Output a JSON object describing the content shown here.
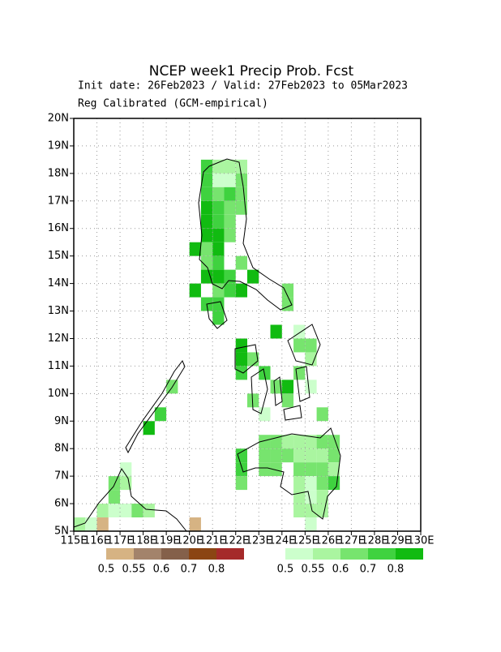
{
  "chart_data": {
    "type": "map",
    "title": "NCEP week1 Precip Prob. Fcst",
    "subtitle": "Init date: 26Feb2023 / Valid: 27Feb2023 to 05Mar2023",
    "subtitle2": "Reg Calibrated (GCM-empirical)",
    "xlim": [
      115,
      130
    ],
    "ylim": [
      5,
      20
    ],
    "grid": true,
    "xticks": [
      {
        "value": 115,
        "label": "115E"
      },
      {
        "value": 116,
        "label": "116E"
      },
      {
        "value": 117,
        "label": "117E"
      },
      {
        "value": 118,
        "label": "118E"
      },
      {
        "value": 119,
        "label": "119E"
      },
      {
        "value": 120,
        "label": "120E"
      },
      {
        "value": 121,
        "label": "121E"
      },
      {
        "value": 122,
        "label": "122E"
      },
      {
        "value": 123,
        "label": "123E"
      },
      {
        "value": 124,
        "label": "124E"
      },
      {
        "value": 125,
        "label": "125E"
      },
      {
        "value": 126,
        "label": "126E"
      },
      {
        "value": 127,
        "label": "127E"
      },
      {
        "value": 128,
        "label": "128E"
      },
      {
        "value": 129,
        "label": "129E"
      },
      {
        "value": 130,
        "label": "130E"
      }
    ],
    "yticks": [
      {
        "value": 5,
        "label": "5N"
      },
      {
        "value": 6,
        "label": "6N"
      },
      {
        "value": 7,
        "label": "7N"
      },
      {
        "value": 8,
        "label": "8N"
      },
      {
        "value": 9,
        "label": "9N"
      },
      {
        "value": 10,
        "label": "10N"
      },
      {
        "value": 11,
        "label": "11N"
      },
      {
        "value": 12,
        "label": "12N"
      },
      {
        "value": 13,
        "label": "13N"
      },
      {
        "value": 14,
        "label": "14N"
      },
      {
        "value": 15,
        "label": "15N"
      },
      {
        "value": 16,
        "label": "16N"
      },
      {
        "value": 17,
        "label": "17N"
      },
      {
        "value": 18,
        "label": "18N"
      },
      {
        "value": 19,
        "label": "19N"
      },
      {
        "value": 20,
        "label": "20N"
      }
    ],
    "cell_size": 0.5,
    "levels": [
      0.5,
      0.55,
      0.6,
      0.7,
      0.8
    ],
    "dry_colors": [
      "#d6b383",
      "#a3836b",
      "#84604a",
      "#8b4513",
      "#a52a2a"
    ],
    "wet_colors": [
      "#ccffcc",
      "#aaf5a0",
      "#77e46e",
      "#3fd23f",
      "#11bb11"
    ],
    "dry_cells": [
      [
        116,
        5,
        0.5
      ],
      [
        120,
        5,
        0.5
      ]
    ],
    "wet_cells": [
      [
        120.5,
        18,
        0.7
      ],
      [
        121,
        18,
        0.55
      ],
      [
        121.5,
        18,
        0.55
      ],
      [
        122,
        18,
        0.55
      ],
      [
        120.5,
        17.5,
        0.7
      ],
      [
        121,
        17.5,
        0.5
      ],
      [
        121.5,
        17.5,
        0.5
      ],
      [
        122,
        17.5,
        0.6
      ],
      [
        120.5,
        17,
        0.7
      ],
      [
        121,
        17,
        0.6
      ],
      [
        121.5,
        17,
        0.7
      ],
      [
        122,
        17,
        0.6
      ],
      [
        120.5,
        16.5,
        0.8
      ],
      [
        121,
        16.5,
        0.7
      ],
      [
        121.5,
        16.5,
        0.6
      ],
      [
        122,
        16.5,
        0.6
      ],
      [
        120.5,
        16,
        0.8
      ],
      [
        121,
        16,
        0.7
      ],
      [
        121.5,
        16,
        0.6
      ],
      [
        120.5,
        15.5,
        0.8
      ],
      [
        121,
        15.5,
        0.8
      ],
      [
        121.5,
        15.5,
        0.6
      ],
      [
        120,
        15,
        0.8
      ],
      [
        120.5,
        15,
        0.6
      ],
      [
        121,
        15,
        0.8
      ],
      [
        120.5,
        14.5,
        0.6
      ],
      [
        121,
        14.5,
        0.7
      ],
      [
        122,
        14.5,
        0.6
      ],
      [
        120,
        13.5,
        0.8
      ],
      [
        120.5,
        14,
        0.8
      ],
      [
        121,
        14,
        0.8
      ],
      [
        121.5,
        14,
        0.7
      ],
      [
        122.5,
        14,
        0.8
      ],
      [
        121,
        13.5,
        0.6
      ],
      [
        121.5,
        13.5,
        0.7
      ],
      [
        122,
        13.5,
        0.8
      ],
      [
        124,
        13.5,
        0.6
      ],
      [
        120.5,
        13,
        0.7
      ],
      [
        121,
        13,
        0.7
      ],
      [
        124,
        13,
        0.6
      ],
      [
        121,
        12.5,
        0.7
      ],
      [
        123.5,
        12,
        0.8
      ],
      [
        124.5,
        12,
        0.5
      ],
      [
        125,
        11.5,
        0.6
      ],
      [
        124.5,
        11.5,
        0.6
      ],
      [
        122,
        11.5,
        0.8
      ],
      [
        122,
        11,
        0.8
      ],
      [
        122.5,
        11,
        0.6
      ],
      [
        122,
        10.5,
        0.7
      ],
      [
        125,
        11,
        0.55
      ],
      [
        123,
        10.5,
        0.7
      ],
      [
        124.5,
        10.5,
        0.6
      ],
      [
        123.5,
        10,
        0.6
      ],
      [
        124,
        10,
        0.8
      ],
      [
        125,
        10,
        0.5
      ],
      [
        122.5,
        9.5,
        0.6
      ],
      [
        124,
        9.5,
        0.6
      ],
      [
        123,
        9,
        0.5
      ],
      [
        125.5,
        9,
        0.6
      ],
      [
        118.5,
        9,
        0.7
      ],
      [
        118,
        8.5,
        0.8
      ],
      [
        119,
        10,
        0.6
      ],
      [
        123,
        8,
        0.6
      ],
      [
        123.5,
        8,
        0.6
      ],
      [
        124,
        8,
        0.55
      ],
      [
        124.5,
        8,
        0.55
      ],
      [
        125,
        8,
        0.55
      ],
      [
        125.5,
        8,
        0.6
      ],
      [
        126,
        8,
        0.6
      ],
      [
        122,
        7.5,
        0.7
      ],
      [
        123,
        7.5,
        0.6
      ],
      [
        123.5,
        7.5,
        0.6
      ],
      [
        124,
        7.5,
        0.6
      ],
      [
        124.5,
        7.5,
        0.55
      ],
      [
        125,
        7.5,
        0.55
      ],
      [
        125.5,
        7.5,
        0.55
      ],
      [
        126,
        7.5,
        0.6
      ],
      [
        122,
        7,
        0.7
      ],
      [
        123,
        7,
        0.6
      ],
      [
        123.5,
        7,
        0.6
      ],
      [
        124.5,
        7,
        0.6
      ],
      [
        125,
        7,
        0.6
      ],
      [
        125.5,
        7,
        0.6
      ],
      [
        126,
        7,
        0.55
      ],
      [
        122,
        6.5,
        0.6
      ],
      [
        124.5,
        6.5,
        0.55
      ],
      [
        125,
        6.5,
        0.5
      ],
      [
        125.5,
        6.5,
        0.6
      ],
      [
        126,
        6.5,
        0.7
      ],
      [
        124.5,
        6,
        0.55
      ],
      [
        125,
        6,
        0.5
      ],
      [
        125.5,
        6,
        0.55
      ],
      [
        124.5,
        5.5,
        0.55
      ],
      [
        125,
        5.5,
        0.55
      ],
      [
        125.5,
        5.5,
        0.55
      ],
      [
        125,
        5,
        0.5
      ],
      [
        116.5,
        6.5,
        0.6
      ],
      [
        117,
        6.5,
        0.55
      ],
      [
        117,
        7,
        0.5
      ],
      [
        116.5,
        6,
        0.6
      ],
      [
        116,
        5.5,
        0.55
      ],
      [
        116.5,
        5.5,
        0.5
      ],
      [
        117,
        5.5,
        0.5
      ],
      [
        117.5,
        5.5,
        0.6
      ],
      [
        118,
        5.5,
        0.55
      ],
      [
        115,
        5,
        0.55
      ],
      [
        115.5,
        5,
        0.5
      ]
    ]
  }
}
